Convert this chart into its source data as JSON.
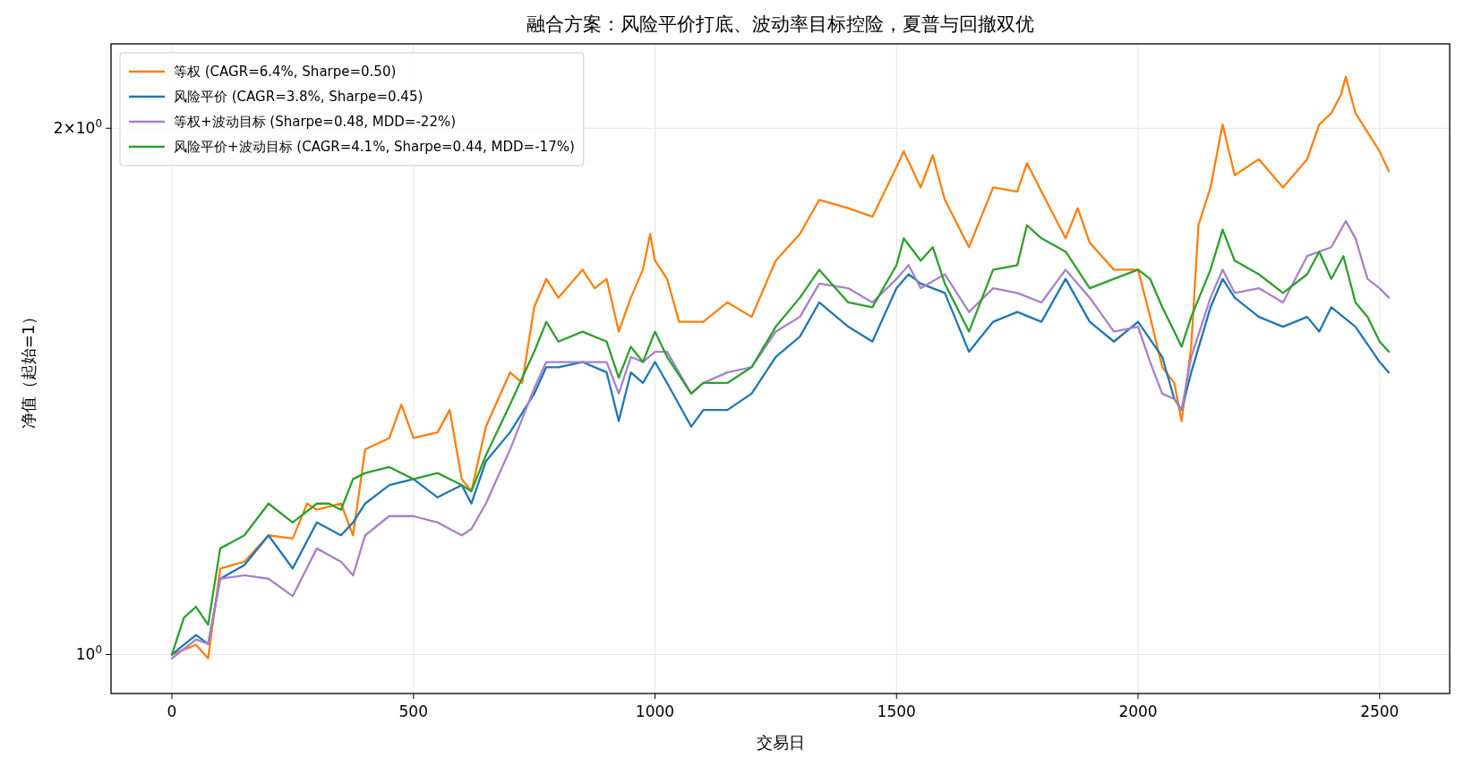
{
  "chart_data": {
    "type": "line",
    "title": "融合方案：风险平价打底、波动率目标控险，夏普与回撤双优",
    "xlabel": "交易日",
    "ylabel": "净值（起始=1）",
    "xlim": [
      -126,
      2645
    ],
    "xticks": [
      0,
      500,
      1000,
      1500,
      2000,
      2500
    ],
    "ylim": [
      0.95,
      2.235
    ],
    "log": "y",
    "yticks": [
      {
        "value": 1,
        "label": "10$^{0}$"
      },
      {
        "value": 2,
        "label": "2×10$^{0}$"
      }
    ],
    "grid": true,
    "legend": "top left",
    "line_style": "solid",
    "series": [
      {
        "name": "等权 (CAGR=6.4%, Sharpe=0.50)",
        "color": "#ff7f0e",
        "x": [
          0,
          50,
          75,
          100,
          150,
          200,
          250,
          280,
          300,
          350,
          375,
          400,
          450,
          475,
          500,
          550,
          575,
          600,
          620,
          650,
          700,
          725,
          750,
          775,
          800,
          850,
          875,
          900,
          925,
          950,
          975,
          990,
          1000,
          1025,
          1050,
          1075,
          1100,
          1150,
          1200,
          1250,
          1300,
          1340,
          1400,
          1450,
          1500,
          1515,
          1550,
          1575,
          1600,
          1650,
          1700,
          1750,
          1770,
          1800,
          1850,
          1875,
          1900,
          1950,
          2000,
          2025,
          2050,
          2075,
          2090,
          2110,
          2125,
          2150,
          2175,
          2200,
          2250,
          2300,
          2350,
          2375,
          2400,
          2420,
          2430,
          2450,
          2500,
          2519
        ],
        "values": [
          1.0,
          1.013,
          0.995,
          1.12,
          1.13,
          1.17,
          1.165,
          1.22,
          1.21,
          1.22,
          1.17,
          1.31,
          1.33,
          1.39,
          1.33,
          1.34,
          1.38,
          1.26,
          1.24,
          1.35,
          1.45,
          1.43,
          1.58,
          1.64,
          1.6,
          1.66,
          1.62,
          1.64,
          1.53,
          1.6,
          1.66,
          1.74,
          1.68,
          1.64,
          1.55,
          1.55,
          1.55,
          1.59,
          1.56,
          1.68,
          1.74,
          1.82,
          1.8,
          1.78,
          1.9,
          1.94,
          1.85,
          1.93,
          1.82,
          1.71,
          1.85,
          1.84,
          1.91,
          1.84,
          1.73,
          1.8,
          1.72,
          1.66,
          1.66,
          1.56,
          1.46,
          1.43,
          1.36,
          1.5,
          1.76,
          1.85,
          2.01,
          1.88,
          1.92,
          1.85,
          1.92,
          2.01,
          2.04,
          2.09,
          2.14,
          2.04,
          1.94,
          1.89
        ]
      },
      {
        "name": "风险平价 (CAGR=3.8%, Sharpe=0.45)",
        "color": "#1f77b4",
        "x": [
          0,
          50,
          75,
          100,
          150,
          200,
          250,
          300,
          350,
          375,
          400,
          450,
          500,
          550,
          600,
          620,
          650,
          700,
          750,
          775,
          800,
          850,
          900,
          925,
          950,
          975,
          1000,
          1025,
          1075,
          1100,
          1150,
          1200,
          1250,
          1300,
          1340,
          1400,
          1450,
          1500,
          1525,
          1550,
          1600,
          1650,
          1700,
          1750,
          1800,
          1850,
          1900,
          1950,
          2000,
          2050,
          2075,
          2090,
          2110,
          2150,
          2175,
          2200,
          2250,
          2300,
          2350,
          2375,
          2400,
          2450,
          2500,
          2519
        ],
        "values": [
          1.0,
          1.026,
          1.014,
          1.105,
          1.125,
          1.17,
          1.12,
          1.19,
          1.17,
          1.19,
          1.22,
          1.25,
          1.26,
          1.23,
          1.25,
          1.22,
          1.29,
          1.34,
          1.41,
          1.46,
          1.46,
          1.47,
          1.45,
          1.36,
          1.45,
          1.43,
          1.47,
          1.43,
          1.35,
          1.38,
          1.38,
          1.41,
          1.48,
          1.52,
          1.59,
          1.54,
          1.51,
          1.62,
          1.65,
          1.63,
          1.61,
          1.49,
          1.55,
          1.57,
          1.55,
          1.64,
          1.55,
          1.51,
          1.55,
          1.48,
          1.4,
          1.38,
          1.45,
          1.58,
          1.64,
          1.6,
          1.56,
          1.54,
          1.56,
          1.53,
          1.58,
          1.54,
          1.47,
          1.45
        ]
      },
      {
        "name": "等权+波动目标 (Sharpe=0.48, MDD=-22%)",
        "color": "#a682c9",
        "x": [
          0,
          50,
          75,
          100,
          150,
          200,
          250,
          300,
          350,
          375,
          400,
          450,
          500,
          550,
          600,
          620,
          650,
          700,
          750,
          775,
          800,
          850,
          900,
          925,
          950,
          975,
          1000,
          1025,
          1075,
          1100,
          1150,
          1200,
          1250,
          1300,
          1340,
          1400,
          1450,
          1500,
          1525,
          1550,
          1600,
          1650,
          1700,
          1750,
          1800,
          1850,
          1900,
          1950,
          2000,
          2025,
          2050,
          2075,
          2090,
          2110,
          2150,
          2175,
          2200,
          2250,
          2300,
          2350,
          2400,
          2430,
          2450,
          2475,
          2500,
          2519
        ],
        "values": [
          0.995,
          1.02,
          1.014,
          1.105,
          1.11,
          1.105,
          1.08,
          1.15,
          1.13,
          1.11,
          1.17,
          1.2,
          1.2,
          1.19,
          1.17,
          1.18,
          1.22,
          1.31,
          1.42,
          1.47,
          1.47,
          1.47,
          1.47,
          1.41,
          1.48,
          1.47,
          1.49,
          1.49,
          1.41,
          1.43,
          1.45,
          1.46,
          1.53,
          1.56,
          1.63,
          1.62,
          1.59,
          1.64,
          1.67,
          1.62,
          1.65,
          1.57,
          1.62,
          1.61,
          1.59,
          1.66,
          1.6,
          1.53,
          1.54,
          1.47,
          1.41,
          1.4,
          1.38,
          1.48,
          1.6,
          1.66,
          1.61,
          1.62,
          1.59,
          1.69,
          1.71,
          1.77,
          1.73,
          1.64,
          1.62,
          1.6
        ]
      },
      {
        "name": "风险平价+波动目标 (CAGR=4.1%, Sharpe=0.44, MDD=-17%)",
        "color": "#2ca02c",
        "x": [
          0,
          25,
          50,
          75,
          100,
          150,
          200,
          250,
          300,
          325,
          350,
          375,
          400,
          450,
          500,
          550,
          600,
          620,
          650,
          700,
          750,
          775,
          800,
          850,
          900,
          925,
          950,
          975,
          1000,
          1025,
          1075,
          1100,
          1150,
          1200,
          1250,
          1300,
          1340,
          1400,
          1450,
          1500,
          1515,
          1550,
          1575,
          1600,
          1650,
          1700,
          1750,
          1770,
          1800,
          1850,
          1900,
          1950,
          2000,
          2025,
          2050,
          2075,
          2090,
          2110,
          2150,
          2175,
          2200,
          2250,
          2300,
          2350,
          2375,
          2400,
          2425,
          2450,
          2475,
          2500,
          2519
        ],
        "values": [
          1.0,
          1.05,
          1.065,
          1.04,
          1.15,
          1.17,
          1.22,
          1.19,
          1.22,
          1.22,
          1.21,
          1.26,
          1.27,
          1.28,
          1.26,
          1.27,
          1.25,
          1.24,
          1.3,
          1.39,
          1.49,
          1.55,
          1.51,
          1.53,
          1.51,
          1.44,
          1.5,
          1.47,
          1.53,
          1.48,
          1.41,
          1.43,
          1.43,
          1.46,
          1.54,
          1.6,
          1.66,
          1.59,
          1.58,
          1.67,
          1.73,
          1.68,
          1.71,
          1.63,
          1.53,
          1.66,
          1.67,
          1.76,
          1.73,
          1.7,
          1.62,
          1.64,
          1.66,
          1.64,
          1.58,
          1.53,
          1.5,
          1.56,
          1.66,
          1.75,
          1.68,
          1.65,
          1.61,
          1.65,
          1.7,
          1.64,
          1.69,
          1.59,
          1.56,
          1.51,
          1.49
        ]
      }
    ]
  }
}
